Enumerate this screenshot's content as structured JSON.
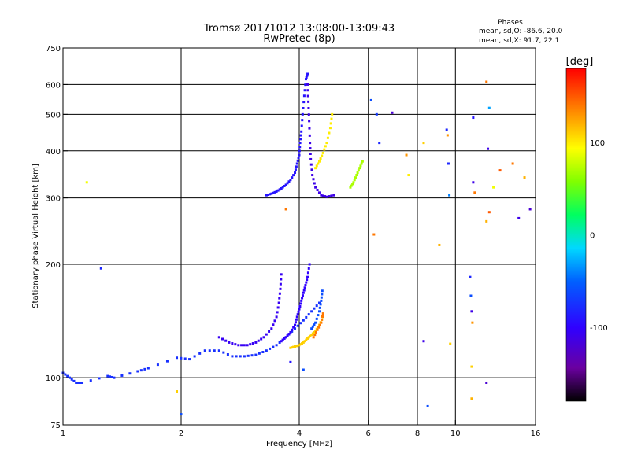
{
  "chart_data": {
    "type": "scatter",
    "title": "Tromsø 20171012 13:08:00-13:09:43",
    "subtitle": "RwPretec (8p)",
    "info": {
      "heading": "Phases",
      "line1": "mean, sd,O: -86.6, 20.0",
      "line2": "mean, sd,X:  91.7, 22.1"
    },
    "xlabel": "Frequency [MHz]",
    "ylabel": "Stationary phase Virtual Height [km]",
    "x_scale": "log",
    "y_scale": "log",
    "xlim": [
      1,
      16
    ],
    "ylim": [
      75,
      750
    ],
    "x_ticks": [
      1,
      2,
      4,
      6,
      8,
      10,
      16
    ],
    "x_tick_labels": [
      "1",
      "2",
      "4",
      "6",
      "8",
      "10",
      "16"
    ],
    "y_ticks": [
      75,
      100,
      200,
      300,
      400,
      500,
      600,
      750
    ],
    "y_tick_labels": [
      "75",
      "100",
      "200",
      "300",
      "400",
      "500",
      "600",
      "750"
    ],
    "grid": true,
    "colorbar": {
      "label": "[deg]",
      "range": [
        -180,
        180
      ],
      "ticks": [
        100,
        0,
        -100
      ],
      "tick_labels": [
        "100",
        "0",
        "-100"
      ]
    },
    "traces": [
      {
        "name": "",
        "phase": -90,
        "points": [
          [
            3.3,
            305
          ],
          [
            3.4,
            308
          ],
          [
            3.5,
            312
          ],
          [
            3.6,
            318
          ],
          [
            3.7,
            325
          ],
          [
            3.8,
            335
          ],
          [
            3.9,
            350
          ],
          [
            3.95,
            370
          ],
          [
            4.0,
            390
          ],
          [
            4.02,
            420
          ],
          [
            4.05,
            450
          ],
          [
            4.08,
            500
          ],
          [
            4.12,
            560
          ],
          [
            4.16,
            620
          ],
          [
            4.2,
            640
          ]
        ]
      },
      {
        "name": "",
        "phase": -110,
        "points": [
          [
            4.2,
            600
          ],
          [
            4.22,
            540
          ],
          [
            4.24,
            480
          ],
          [
            4.26,
            420
          ],
          [
            4.28,
            380
          ],
          [
            4.32,
            345
          ],
          [
            4.4,
            320
          ],
          [
            4.55,
            305
          ],
          [
            4.7,
            302
          ],
          [
            4.9,
            305
          ]
        ]
      },
      {
        "name": "",
        "phase": 100,
        "points": [
          [
            4.4,
            360
          ],
          [
            4.5,
            375
          ],
          [
            4.6,
            395
          ],
          [
            4.7,
            420
          ],
          [
            4.8,
            460
          ],
          [
            4.85,
            500
          ]
        ]
      },
      {
        "name": "",
        "phase": 70,
        "points": [
          [
            5.4,
            320
          ],
          [
            5.5,
            330
          ],
          [
            5.6,
            345
          ],
          [
            5.7,
            360
          ],
          [
            5.8,
            375
          ]
        ]
      },
      {
        "name": "",
        "phase": -75,
        "points": [
          [
            1.0,
            103
          ],
          [
            1.04,
            100
          ],
          [
            1.08,
            97
          ],
          [
            1.12,
            97
          ],
          [
            1.3,
            101
          ],
          [
            1.35,
            100
          ],
          [
            1.55,
            104
          ],
          [
            1.65,
            106
          ],
          [
            1.95,
            113
          ],
          [
            2.1,
            112
          ],
          [
            2.3,
            118
          ],
          [
            2.5,
            118
          ],
          [
            2.7,
            114
          ],
          [
            2.9,
            114
          ],
          [
            3.1,
            115
          ],
          [
            3.3,
            118
          ],
          [
            3.5,
            122
          ],
          [
            3.7,
            128
          ],
          [
            3.9,
            135
          ],
          [
            4.1,
            142
          ],
          [
            4.3,
            150
          ],
          [
            4.5,
            158
          ]
        ]
      },
      {
        "name": "",
        "phase": -105,
        "points": [
          [
            2.5,
            128
          ],
          [
            2.65,
            124
          ],
          [
            2.8,
            122
          ],
          [
            2.95,
            122
          ],
          [
            3.1,
            124
          ],
          [
            3.25,
            128
          ],
          [
            3.4,
            135
          ],
          [
            3.5,
            145
          ],
          [
            3.55,
            158
          ],
          [
            3.58,
            172
          ],
          [
            3.6,
            188
          ]
        ]
      },
      {
        "name": "",
        "phase": -100,
        "points": [
          [
            3.6,
            125
          ],
          [
            3.7,
            128
          ],
          [
            3.8,
            132
          ],
          [
            3.9,
            138
          ],
          [
            3.95,
            145
          ],
          [
            4.0,
            152
          ],
          [
            4.05,
            160
          ],
          [
            4.1,
            168
          ],
          [
            4.15,
            176
          ],
          [
            4.2,
            185
          ],
          [
            4.25,
            200
          ]
        ]
      },
      {
        "name": "",
        "phase": -60,
        "points": [
          [
            4.3,
            135
          ],
          [
            4.4,
            140
          ],
          [
            4.5,
            150
          ],
          [
            4.55,
            160
          ],
          [
            4.58,
            170
          ]
        ]
      },
      {
        "name": "",
        "phase": 110,
        "points": [
          [
            3.8,
            120
          ],
          [
            3.9,
            121
          ],
          [
            4.0,
            122
          ],
          [
            4.1,
            124
          ],
          [
            4.2,
            127
          ],
          [
            4.3,
            130
          ],
          [
            4.4,
            133
          ],
          [
            4.5,
            138
          ],
          [
            4.6,
            145
          ]
        ]
      },
      {
        "name": "",
        "phase": 140,
        "points": [
          [
            4.35,
            128
          ],
          [
            4.45,
            134
          ],
          [
            4.55,
            140
          ],
          [
            4.6,
            148
          ]
        ]
      }
    ],
    "scattered_points": [
      {
        "x": 1.15,
        "y": 330,
        "phase": 90
      },
      {
        "x": 1.25,
        "y": 195,
        "phase": -80
      },
      {
        "x": 1.95,
        "y": 92,
        "phase": 110
      },
      {
        "x": 2.0,
        "y": 80,
        "phase": -60
      },
      {
        "x": 3.7,
        "y": 280,
        "phase": 140
      },
      {
        "x": 3.8,
        "y": 110,
        "phase": -90
      },
      {
        "x": 4.1,
        "y": 105,
        "phase": -60
      },
      {
        "x": 6.1,
        "y": 545,
        "phase": -60
      },
      {
        "x": 6.2,
        "y": 240,
        "phase": 140
      },
      {
        "x": 6.3,
        "y": 500,
        "phase": -70
      },
      {
        "x": 6.4,
        "y": 420,
        "phase": -80
      },
      {
        "x": 6.9,
        "y": 505,
        "phase": -120
      },
      {
        "x": 7.5,
        "y": 390,
        "phase": 130
      },
      {
        "x": 7.6,
        "y": 345,
        "phase": 100
      },
      {
        "x": 8.3,
        "y": 420,
        "phase": 110
      },
      {
        "x": 8.3,
        "y": 125,
        "phase": -110
      },
      {
        "x": 8.5,
        "y": 84,
        "phase": -60
      },
      {
        "x": 9.1,
        "y": 225,
        "phase": 120
      },
      {
        "x": 9.5,
        "y": 455,
        "phase": -80
      },
      {
        "x": 9.55,
        "y": 440,
        "phase": 130
      },
      {
        "x": 9.6,
        "y": 370,
        "phase": -80
      },
      {
        "x": 9.65,
        "y": 305,
        "phase": -40
      },
      {
        "x": 9.7,
        "y": 123,
        "phase": 110
      },
      {
        "x": 10.9,
        "y": 185,
        "phase": -80
      },
      {
        "x": 10.95,
        "y": 165,
        "phase": -60
      },
      {
        "x": 11.0,
        "y": 150,
        "phase": -110
      },
      {
        "x": 11.05,
        "y": 140,
        "phase": 130
      },
      {
        "x": 11.0,
        "y": 107,
        "phase": 110
      },
      {
        "x": 11.0,
        "y": 88,
        "phase": 120
      },
      {
        "x": 11.1,
        "y": 330,
        "phase": -110
      },
      {
        "x": 11.2,
        "y": 310,
        "phase": 140
      },
      {
        "x": 11.1,
        "y": 490,
        "phase": -90
      },
      {
        "x": 12.0,
        "y": 610,
        "phase": 140
      },
      {
        "x": 12.2,
        "y": 520,
        "phase": -30
      },
      {
        "x": 12.1,
        "y": 405,
        "phase": -110
      },
      {
        "x": 12.5,
        "y": 320,
        "phase": 90
      },
      {
        "x": 12.0,
        "y": 260,
        "phase": 120
      },
      {
        "x": 12.2,
        "y": 275,
        "phase": 150
      },
      {
        "x": 12.0,
        "y": 97,
        "phase": -120
      },
      {
        "x": 13.0,
        "y": 355,
        "phase": 150
      },
      {
        "x": 14.0,
        "y": 370,
        "phase": 140
      },
      {
        "x": 14.5,
        "y": 265,
        "phase": -110
      },
      {
        "x": 15.5,
        "y": 280,
        "phase": -120
      },
      {
        "x": 15.0,
        "y": 340,
        "phase": 120
      }
    ]
  }
}
